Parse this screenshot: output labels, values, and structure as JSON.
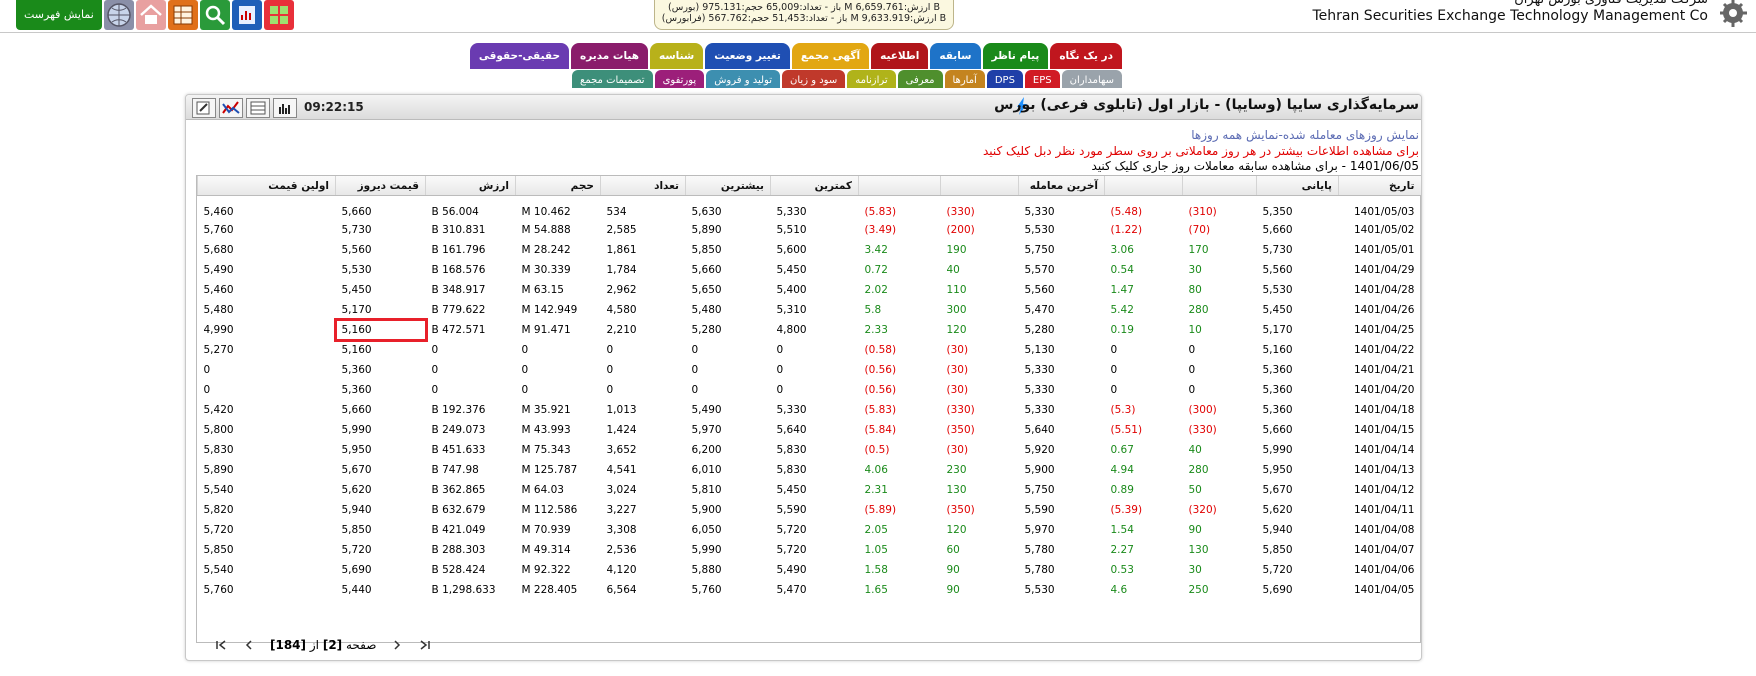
{
  "header": {
    "company_fa": "شرکت مدیریت فناوری بورس تهران",
    "company_en": "Tehran Securities Exchange Technology Management Co",
    "show_list": "نمایش فهرست",
    "market": {
      "line1": "(بورس) باز - تعداد:65,009 حجم:975.131 M ارزش:6,659.761 B",
      "line2": "(فرابورس) باز - تعداد:51,453 حجم:567.762 M ارزش:9,633.919 B"
    }
  },
  "tabs_row1": [
    "در یک نگاه",
    "پیام ناظر",
    "سابقه",
    "اطلاعیه",
    "آگهی مجمع",
    "تغییر وضعیت",
    "شناسه",
    "هیات مدیره",
    "حقیقی-حقوقی"
  ],
  "tabs_row2": [
    "سهامداران",
    "EPS",
    "DPS",
    "آمارها",
    "معرفی",
    "ترازنامه",
    "سود و زیان",
    "تولید و فروش",
    "پورتفوی",
    "تصمیمات مجمع"
  ],
  "colors": {
    "tabs1": [
      "#c0161e",
      "#1a8a1a",
      "#1e73c8",
      "#b0151a",
      "#e2a712",
      "#1f4fb3",
      "#b8b11a",
      "#8a1c6b",
      "#6a3bb1"
    ],
    "tabs2": [
      "#9aa3ab",
      "#d11b24",
      "#1f3fa8",
      "#c4841f",
      "#4f8f2d",
      "#b0b31a",
      "#c0392b",
      "#3d8fb0",
      "#9c1f7a",
      "#3d8f7a"
    ],
    "positive": "#1a8a1a",
    "negative": "#e00000"
  },
  "panel": {
    "title": "سرمایه‌گذاری سایپا (وسایپا) - بازار اول (تابلوی فرعی) بورس",
    "time": "09:22:15",
    "link_traded": "نمایش روزهای معامله شده",
    "link_sep": "-",
    "link_all": "نمایش همه روزها",
    "hint_red": "برای مشاهده اطلاعات بیشتر در هر روز معاملاتی بر روی سطر مورد نظر دبل کلیک کنید",
    "hint_black": "1401/06/05 - برای مشاهده سابقه معاملات روز جاری کلیک کنید"
  },
  "table": {
    "headers": [
      "تاریخ",
      "پایانی",
      "",
      "",
      "آخرین معامله",
      "",
      "",
      "کمترین",
      "بیشترین",
      "تعداد",
      "حجم",
      "ارزش",
      "قیمت دیروز",
      "اولین قیمت"
    ],
    "rows": [
      [
        "1401/05/03",
        "5,350",
        "(310)",
        "(5.48)",
        "5,330",
        "(330)",
        "(5.83)",
        "5,330",
        "5,630",
        "534",
        "10.462 M",
        "56.004 B",
        "5,660",
        "5,460"
      ],
      [
        "1401/05/02",
        "5,660",
        "(70)",
        "(1.22)",
        "5,530",
        "(200)",
        "(3.49)",
        "5,510",
        "5,890",
        "2,585",
        "54.888 M",
        "310.831 B",
        "5,730",
        "5,760"
      ],
      [
        "1401/05/01",
        "5,730",
        "170",
        "3.06",
        "5,750",
        "190",
        "3.42",
        "5,600",
        "5,850",
        "1,861",
        "28.242 M",
        "161.796 B",
        "5,560",
        "5,680"
      ],
      [
        "1401/04/29",
        "5,560",
        "30",
        "0.54",
        "5,570",
        "40",
        "0.72",
        "5,450",
        "5,660",
        "1,784",
        "30.339 M",
        "168.576 B",
        "5,530",
        "5,490"
      ],
      [
        "1401/04/28",
        "5,530",
        "80",
        "1.47",
        "5,560",
        "110",
        "2.02",
        "5,400",
        "5,650",
        "2,962",
        "63.15 M",
        "348.917 B",
        "5,450",
        "5,460"
      ],
      [
        "1401/04/26",
        "5,450",
        "280",
        "5.42",
        "5,470",
        "300",
        "5.8",
        "5,310",
        "5,480",
        "4,580",
        "142.949 M",
        "779.622 B",
        "5,170",
        "5,480"
      ],
      [
        "1401/04/25",
        "5,170",
        "10",
        "0.19",
        "5,280",
        "120",
        "2.33",
        "4,800",
        "5,280",
        "2,210",
        "91.471 M",
        "472.571 B",
        "5,160",
        "4,990"
      ],
      [
        "1401/04/22",
        "5,160",
        "0",
        "0",
        "5,130",
        "(30)",
        "(0.58)",
        "0",
        "0",
        "0",
        "0",
        "0",
        "5,160",
        "5,270"
      ],
      [
        "1401/04/21",
        "5,360",
        "0",
        "0",
        "5,330",
        "(30)",
        "(0.56)",
        "0",
        "0",
        "0",
        "0",
        "0",
        "5,360",
        "0"
      ],
      [
        "1401/04/20",
        "5,360",
        "0",
        "0",
        "5,330",
        "(30)",
        "(0.56)",
        "0",
        "0",
        "0",
        "0",
        "0",
        "5,360",
        "0"
      ],
      [
        "1401/04/18",
        "5,360",
        "(300)",
        "(5.3)",
        "5,330",
        "(330)",
        "(5.83)",
        "5,330",
        "5,490",
        "1,013",
        "35.921 M",
        "192.376 B",
        "5,660",
        "5,420"
      ],
      [
        "1401/04/15",
        "5,660",
        "(330)",
        "(5.51)",
        "5,640",
        "(350)",
        "(5.84)",
        "5,640",
        "5,970",
        "1,424",
        "43.993 M",
        "249.073 B",
        "5,990",
        "5,800"
      ],
      [
        "1401/04/14",
        "5,990",
        "40",
        "0.67",
        "5,920",
        "(30)",
        "(0.5)",
        "5,830",
        "6,200",
        "3,652",
        "75.343 M",
        "451.633 B",
        "5,950",
        "5,830"
      ],
      [
        "1401/04/13",
        "5,950",
        "280",
        "4.94",
        "5,900",
        "230",
        "4.06",
        "5,830",
        "6,010",
        "4,541",
        "125.787 M",
        "747.98 B",
        "5,670",
        "5,890"
      ],
      [
        "1401/04/12",
        "5,670",
        "50",
        "0.89",
        "5,750",
        "130",
        "2.31",
        "5,450",
        "5,810",
        "3,024",
        "64.03 M",
        "362.865 B",
        "5,620",
        "5,540"
      ],
      [
        "1401/04/11",
        "5,620",
        "(320)",
        "(5.39)",
        "5,590",
        "(350)",
        "(5.89)",
        "5,590",
        "5,900",
        "3,227",
        "112.586 M",
        "632.679 B",
        "5,940",
        "5,820"
      ],
      [
        "1401/04/08",
        "5,940",
        "90",
        "1.54",
        "5,970",
        "120",
        "2.05",
        "5,720",
        "6,050",
        "3,308",
        "70.939 M",
        "421.049 B",
        "5,850",
        "5,720"
      ],
      [
        "1401/04/07",
        "5,850",
        "130",
        "2.27",
        "5,780",
        "60",
        "1.05",
        "5,720",
        "5,990",
        "2,536",
        "49.314 M",
        "288.303 B",
        "5,720",
        "5,850"
      ],
      [
        "1401/04/06",
        "5,720",
        "30",
        "0.53",
        "5,780",
        "90",
        "1.58",
        "5,490",
        "5,880",
        "4,120",
        "92.322 M",
        "528.424 B",
        "5,690",
        "5,540"
      ],
      [
        "1401/04/05",
        "5,690",
        "250",
        "4.6",
        "5,530",
        "90",
        "1.65",
        "5,470",
        "5,760",
        "6,564",
        "228.405 M",
        "1,298.633 B",
        "5,440",
        "5,760"
      ]
    ]
  },
  "pager": {
    "page_word": "صفحه",
    "current": "[2]",
    "of_word": "از",
    "total": "[184]"
  }
}
